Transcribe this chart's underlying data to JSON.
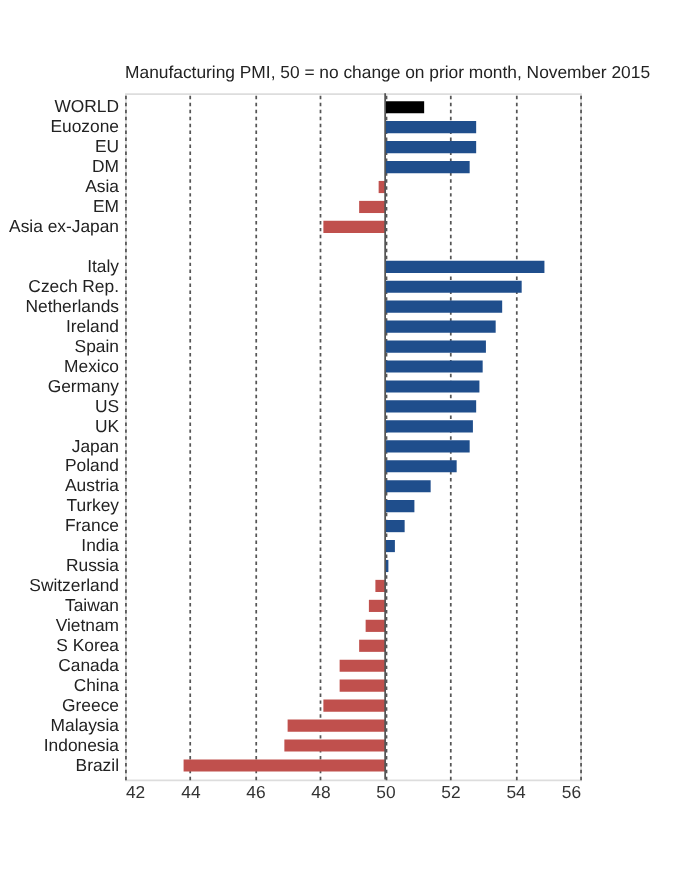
{
  "chart_data": {
    "type": "bar",
    "orientation": "horizontal",
    "title": "Manufacturing PMI, 50 = no change on prior month,  November 2015",
    "categories": [
      "WORLD",
      "Euozone",
      "EU",
      "DM",
      "Asia",
      "EM",
      "Asia ex-Japan",
      null,
      "Italy",
      "Czech Rep.",
      "Netherlands",
      "Ireland",
      "Spain",
      "Mexico",
      "Germany",
      "US",
      "UK",
      "Japan",
      "Poland",
      "Austria",
      "Turkey",
      "France",
      "India",
      "Russia",
      "Switzerland",
      "Taiwan",
      "Vietnam",
      "S Korea",
      "Canada",
      "China",
      "Greece",
      "Malaysia",
      "Indonesia",
      "Brazil"
    ],
    "values": [
      1.2,
      2.8,
      2.8,
      2.6,
      -0.2,
      -0.8,
      -1.9,
      null,
      4.9,
      4.2,
      3.6,
      3.4,
      3.1,
      3.0,
      2.9,
      2.8,
      2.7,
      2.6,
      2.2,
      1.4,
      0.9,
      0.6,
      0.3,
      0.1,
      -0.3,
      -0.5,
      -0.6,
      -0.8,
      -1.4,
      -1.4,
      -1.9,
      -3.0,
      -3.1,
      -6.2
    ],
    "base": [
      50,
      50,
      50,
      50,
      50,
      50,
      50,
      null,
      50,
      50,
      50,
      50,
      50,
      50,
      50,
      50,
      50,
      50,
      50,
      50,
      50,
      50,
      50,
      50,
      50,
      50,
      50,
      50,
      50,
      50,
      50,
      50,
      50,
      50
    ],
    "colors": [
      "#000000",
      "#1f4e8c",
      "#1f4e8c",
      "#1f4e8c",
      "#c0504d",
      "#c0504d",
      "#c0504d",
      null,
      "#1f4e8c",
      "#1f4e8c",
      "#1f4e8c",
      "#1f4e8c",
      "#1f4e8c",
      "#1f4e8c",
      "#1f4e8c",
      "#1f4e8c",
      "#1f4e8c",
      "#1f4e8c",
      "#1f4e8c",
      "#1f4e8c",
      "#1f4e8c",
      "#1f4e8c",
      "#1f4e8c",
      "#1f4e8c",
      "#c0504d",
      "#c0504d",
      "#c0504d",
      "#c0504d",
      "#c0504d",
      "#c0504d",
      "#c0504d",
      "#c0504d",
      "#c0504d",
      "#c0504d"
    ],
    "xlim": [
      42,
      56
    ],
    "xticks": [
      42,
      44,
      46,
      48,
      50,
      52,
      54,
      56
    ],
    "ref_lines": [
      {
        "axis": "x",
        "value": 50
      }
    ],
    "grid": "x"
  }
}
